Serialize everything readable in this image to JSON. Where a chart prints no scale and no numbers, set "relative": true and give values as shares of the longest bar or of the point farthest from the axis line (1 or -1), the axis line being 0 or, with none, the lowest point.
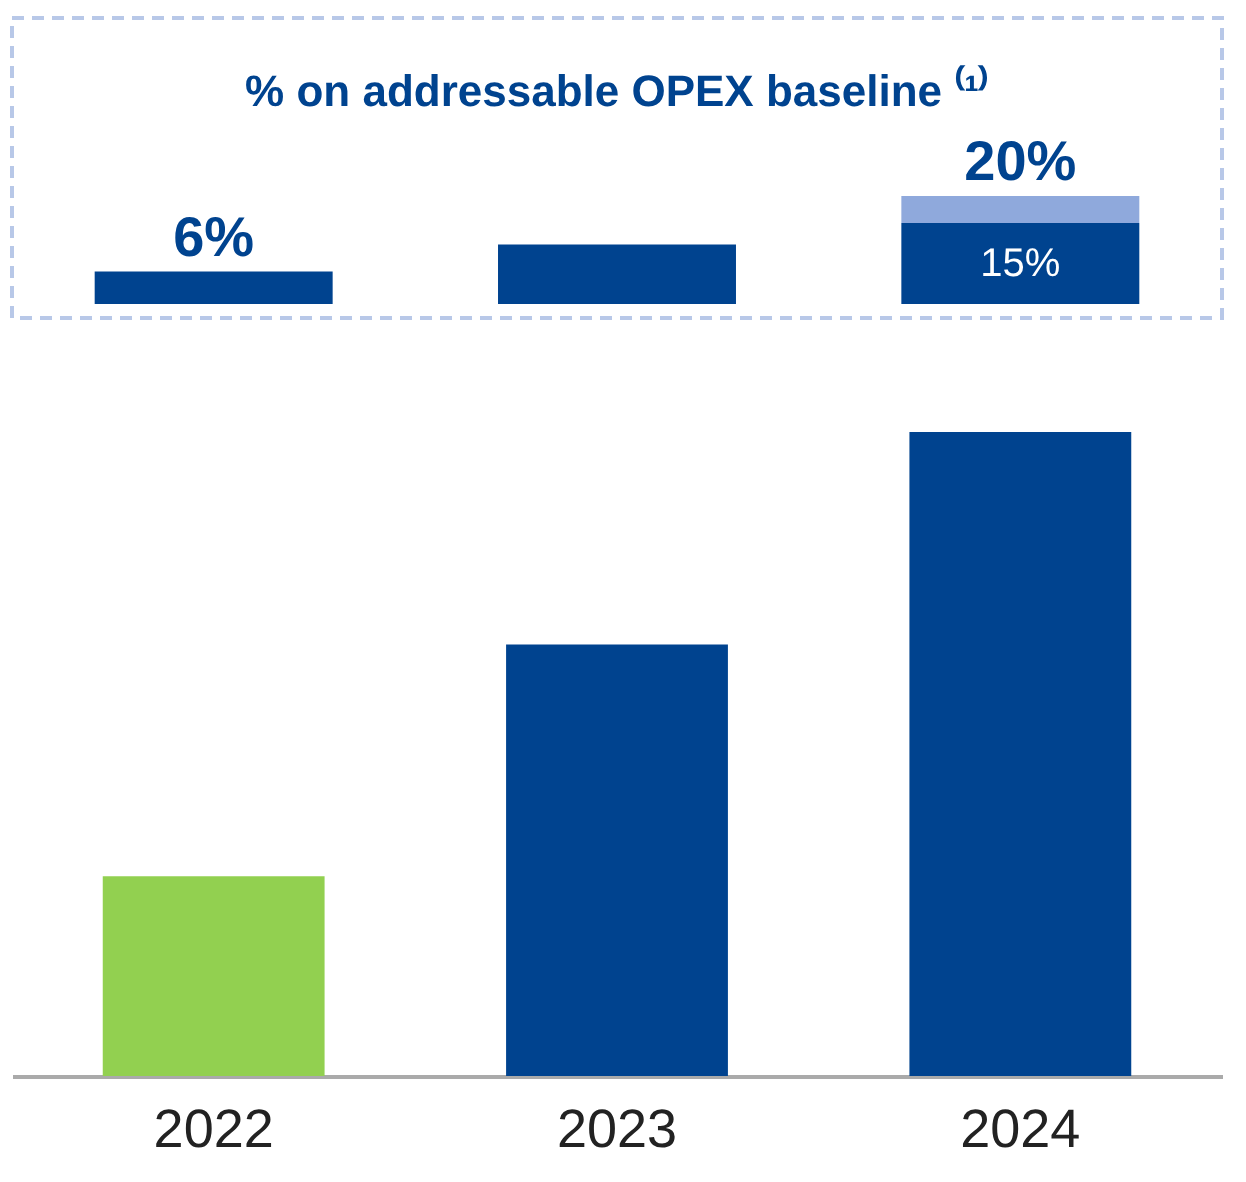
{
  "chart_data": [
    {
      "type": "bar",
      "title": "% on addressable OPEX baseline ⁽¹⁾",
      "categories": [
        "2022",
        "2023",
        "2024"
      ],
      "stacked": true,
      "tick_labels": false,
      "series": [
        {
          "color": "#00438f",
          "values": [
            6,
            11,
            15
          ],
          "value_labels": [
            null,
            null,
            "15%"
          ]
        },
        {
          "color": "#8fa9dc",
          "values": [
            null,
            null,
            5
          ]
        }
      ],
      "totals": [
        "6%",
        null,
        "20%"
      ]
    },
    {
      "type": "bar",
      "categories": [
        "2022",
        "2023",
        "2024"
      ],
      "relative": true,
      "values": [
        0.31,
        0.67,
        1
      ],
      "colors": [
        "#92d050",
        "#00438f",
        "#00438f"
      ]
    }
  ]
}
